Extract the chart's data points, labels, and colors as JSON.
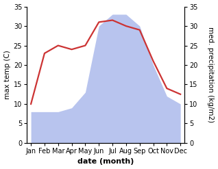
{
  "months": [
    "Jan",
    "Feb",
    "Mar",
    "Apr",
    "May",
    "Jun",
    "Jul",
    "Aug",
    "Sep",
    "Oct",
    "Nov",
    "Dec"
  ],
  "temperature": [
    10,
    23,
    25,
    24,
    25,
    31,
    31.5,
    30,
    29,
    21,
    14,
    12.5
  ],
  "precipitation": [
    8,
    8,
    8,
    9,
    13,
    30,
    33,
    33,
    30,
    20,
    12,
    10
  ],
  "temp_color": "#cc3333",
  "precip_color": "#b8c4ee",
  "background_color": "#ffffff",
  "xlabel": "date (month)",
  "ylabel_left": "max temp (C)",
  "ylabel_right": "med. precipitation (kg/m2)",
  "ylim_left": [
    0,
    35
  ],
  "ylim_right": [
    0,
    35
  ],
  "yticks_left": [
    0,
    5,
    10,
    15,
    20,
    25,
    30,
    35
  ],
  "yticks_right": [
    0,
    5,
    10,
    15,
    20,
    25,
    30,
    35
  ],
  "temp_linewidth": 1.6,
  "xlabel_fontsize": 8,
  "ylabel_fontsize": 7.5,
  "tick_fontsize": 7
}
